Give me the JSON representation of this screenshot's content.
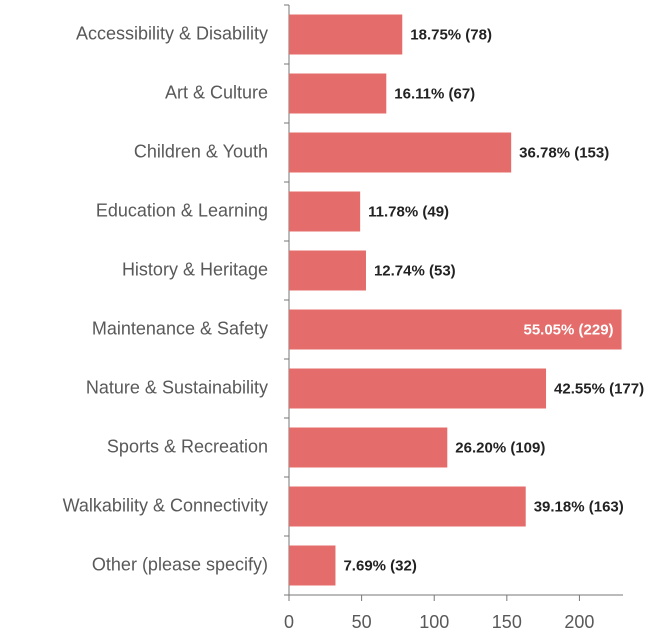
{
  "chart_data": {
    "type": "bar",
    "orientation": "horizontal",
    "categories": [
      "Accessibility & Disability",
      "Art & Culture",
      "Children & Youth",
      "Education & Learning",
      "History & Heritage",
      "Maintenance & Safety",
      "Nature & Sustainability",
      "Sports & Recreation",
      "Walkability & Connectivity",
      "Other (please specify)"
    ],
    "values": [
      78,
      67,
      153,
      49,
      53,
      229,
      177,
      109,
      163,
      32
    ],
    "value_labels": [
      "18.75% (78)",
      "16.11% (67)",
      "36.78% (153)",
      "11.78% (49)",
      "12.74% (53)",
      "55.05% (229)",
      "42.55% (177)",
      "26.20% (109)",
      "39.18% (163)",
      "7.69% (32)"
    ],
    "color": "#e46c6a",
    "xlim": [
      0,
      230
    ],
    "xticks": [
      0,
      50,
      100,
      150,
      200
    ],
    "grid": false
  }
}
